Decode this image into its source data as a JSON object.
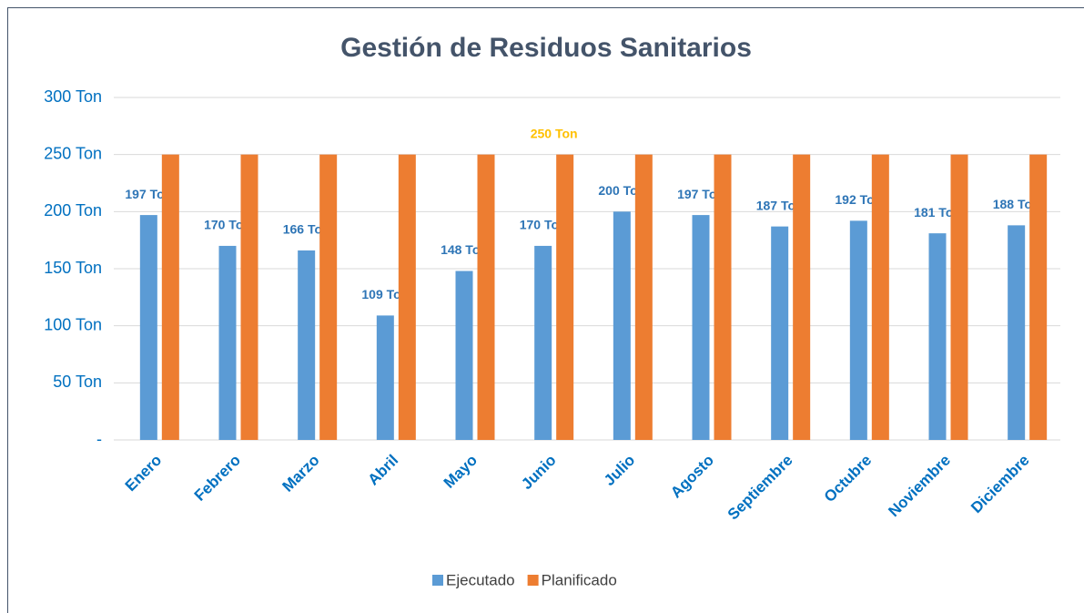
{
  "chart_data": {
    "type": "bar",
    "title": "Gestión de Residuos Sanitarios",
    "categories": [
      "Enero",
      "Febrero",
      "Marzo",
      "Abril",
      "Mayo",
      "Junio",
      "Julio",
      "Agosto",
      "Septiembre",
      "Octubre",
      "Noviembre",
      "Diciembre"
    ],
    "series": [
      {
        "name": "Ejecutado",
        "color": "#5b9bd5",
        "label_color": "#2e75b6",
        "values": [
          197,
          170,
          166,
          109,
          148,
          170,
          200,
          197,
          187,
          192,
          181,
          188
        ],
        "value_labels": [
          "197 Ton",
          "170 Ton",
          "166 Ton",
          "109 Ton",
          "148 Ton",
          "170 Ton",
          "200 Ton",
          "197 Ton",
          "187 Ton",
          "192 Ton",
          "181 Ton",
          "188 Ton"
        ]
      },
      {
        "name": "Planificado",
        "color": "#ed7d31",
        "label_color": "#ffc000",
        "values": [
          250,
          250,
          250,
          250,
          250,
          250,
          250,
          250,
          250,
          250,
          250,
          250
        ],
        "value_labels": [
          null,
          null,
          null,
          null,
          null,
          "250 Ton",
          null,
          null,
          null,
          null,
          null,
          null
        ]
      }
    ],
    "ylim": [
      0,
      300
    ],
    "yticks": [
      {
        "value": 0,
        "label": "-"
      },
      {
        "value": 50,
        "label": "50 Ton"
      },
      {
        "value": 100,
        "label": "100 Ton"
      },
      {
        "value": 150,
        "label": "150 Ton"
      },
      {
        "value": 200,
        "label": "200 Ton"
      },
      {
        "value": 250,
        "label": "250 Ton"
      },
      {
        "value": 300,
        "label": "300 Ton"
      }
    ],
    "grid": true,
    "legend": "bottom"
  }
}
